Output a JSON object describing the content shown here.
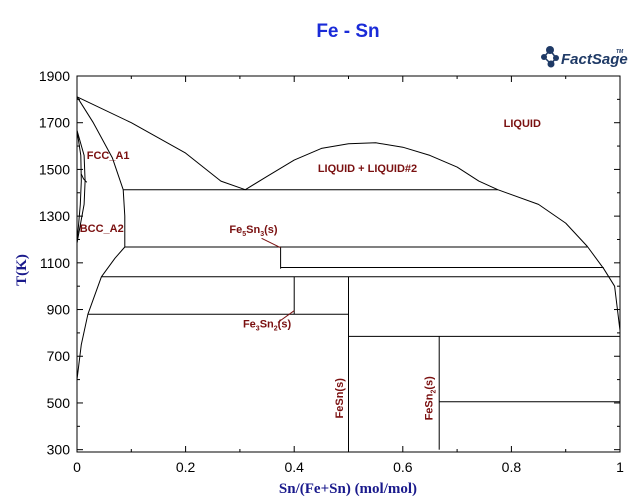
{
  "chart_data": {
    "type": "phase-diagram",
    "title": "Fe - Sn",
    "brand": "FactSage",
    "brand_mark": "TM",
    "xlabel": "Sn/(Fe+Sn) (mol/mol)",
    "ylabel": "T(K)",
    "xlim": [
      0,
      1
    ],
    "ylim": [
      290,
      1900
    ],
    "xticks": [
      0,
      0.2,
      0.4,
      0.6,
      0.8,
      1
    ],
    "xtick_labels": [
      "0",
      "0.2",
      "0.4",
      "0.6",
      "0.8",
      "1"
    ],
    "yticks": [
      300,
      500,
      700,
      900,
      1100,
      1300,
      1500,
      1700,
      1900
    ],
    "ytick_labels": [
      "300",
      "500",
      "700",
      "900",
      "1100",
      "1300",
      "1500",
      "1700",
      "1900"
    ],
    "colors": {
      "title": "#1a2bd8",
      "axis_label": "#1a1a8c",
      "region_label": "#7a1010",
      "line": "#000000",
      "logo": "#1f3a66"
    },
    "boundaries": [
      {
        "name": "liquidus-fe-side",
        "points": [
          [
            0.0,
            1811
          ],
          [
            0.1,
            1700
          ],
          [
            0.2,
            1570
          ],
          [
            0.265,
            1450
          ],
          [
            0.31,
            1413
          ]
        ]
      },
      {
        "name": "miscibility-gap",
        "points": [
          [
            0.31,
            1413
          ],
          [
            0.35,
            1470
          ],
          [
            0.4,
            1540
          ],
          [
            0.45,
            1590
          ],
          [
            0.5,
            1610
          ],
          [
            0.55,
            1614
          ],
          [
            0.6,
            1595
          ],
          [
            0.65,
            1560
          ],
          [
            0.7,
            1510
          ],
          [
            0.74,
            1450
          ],
          [
            0.775,
            1413
          ]
        ]
      },
      {
        "name": "liquidus-sn-side",
        "points": [
          [
            0.775,
            1413
          ],
          [
            0.85,
            1350
          ],
          [
            0.9,
            1270
          ],
          [
            0.94,
            1170
          ],
          [
            0.97,
            1075
          ],
          [
            0.99,
            1000
          ],
          [
            1.0,
            810
          ]
        ]
      },
      {
        "name": "bcc-liquid-boundary",
        "points": [
          [
            0.0,
            1811
          ],
          [
            0.03,
            1700
          ],
          [
            0.065,
            1550
          ],
          [
            0.085,
            1413
          ]
        ]
      },
      {
        "name": "bcc-solvus",
        "points": [
          [
            0.085,
            1413
          ],
          [
            0.088,
            1300
          ],
          [
            0.088,
            1168
          ],
          [
            0.07,
            1120
          ],
          [
            0.045,
            1040
          ],
          [
            0.02,
            880
          ],
          [
            0.008,
            750
          ],
          [
            0.0,
            600
          ]
        ]
      },
      {
        "name": "fcc-loop-outer",
        "points": [
          [
            0.0,
            1667
          ],
          [
            0.013,
            1560
          ],
          [
            0.015,
            1450
          ],
          [
            0.013,
            1350
          ],
          [
            0.0,
            1185
          ]
        ]
      },
      {
        "name": "fcc-loop-inner",
        "points": [
          [
            0.0,
            1667
          ],
          [
            0.007,
            1560
          ],
          [
            0.008,
            1450
          ],
          [
            0.006,
            1350
          ],
          [
            0.0,
            1185
          ]
        ]
      },
      {
        "name": "fcc-hook",
        "points": [
          [
            0.018,
            1445
          ],
          [
            0.012,
            1460
          ],
          [
            0.008,
            1480
          ]
        ]
      },
      {
        "name": "monotectic-line",
        "points": [
          [
            0.085,
            1413
          ],
          [
            0.775,
            1413
          ]
        ]
      },
      {
        "name": "fe5sn3-upper-line",
        "points": [
          [
            0.088,
            1168
          ],
          [
            0.94,
            1168
          ]
        ]
      },
      {
        "name": "fe5sn3-phase",
        "points": [
          [
            0.375,
            1168
          ],
          [
            0.375,
            1075
          ]
        ]
      },
      {
        "name": "fe5sn3-lower-line",
        "points": [
          [
            0.375,
            1080
          ],
          [
            0.97,
            1080
          ]
        ]
      },
      {
        "name": "fe3sn2-upper-line",
        "points": [
          [
            0.045,
            1040
          ],
          [
            1.0,
            1040
          ]
        ]
      },
      {
        "name": "fe3sn2-phase",
        "points": [
          [
            0.4,
            1040
          ],
          [
            0.4,
            880
          ]
        ]
      },
      {
        "name": "fe3sn2-lower-line",
        "points": [
          [
            0.02,
            880
          ],
          [
            0.5,
            880
          ]
        ]
      },
      {
        "name": "fesn-phase",
        "points": [
          [
            0.5,
            1040
          ],
          [
            0.5,
            300
          ]
        ]
      },
      {
        "name": "fesn-sn-line",
        "points": [
          [
            0.5,
            785
          ],
          [
            1.0,
            785
          ]
        ]
      },
      {
        "name": "fesn2-phase",
        "points": [
          [
            0.667,
            785
          ],
          [
            0.667,
            300
          ]
        ]
      },
      {
        "name": "fesn2-sn-line",
        "points": [
          [
            0.667,
            505
          ],
          [
            1.0,
            505
          ]
        ]
      }
    ],
    "labels": [
      {
        "name": "region-liquid",
        "text": "LIQUID",
        "x": 0.82,
        "y": 1682,
        "anchor": "middle"
      },
      {
        "name": "region-liquid-liquid2",
        "text": "LIQUID + LIQUID#2",
        "x": 0.535,
        "y": 1490,
        "anchor": "middle"
      },
      {
        "name": "phase-fcc-a1",
        "text": "FCC_A1",
        "x": 0.018,
        "y": 1545,
        "anchor": "start"
      },
      {
        "name": "phase-bcc-a2",
        "text": "BCC_A2",
        "x": 0.005,
        "y": 1233,
        "anchor": "start"
      }
    ],
    "compounds": [
      {
        "name": "phase-fe5sn3",
        "base": "Fe",
        "sub1": "5",
        "mid": "Sn",
        "sub2": "3",
        "suffix": "(s)",
        "x": 0.325,
        "y": 1228,
        "anchor": "middle",
        "pointer": [
          [
            0.34,
            1205
          ],
          [
            0.375,
            1165
          ]
        ]
      },
      {
        "name": "phase-fe3sn2",
        "base": "Fe",
        "sub1": "3",
        "mid": "Sn",
        "sub2": "2",
        "suffix": "(s)",
        "x": 0.35,
        "y": 824,
        "anchor": "middle",
        "pointer": [
          [
            0.37,
            845
          ],
          [
            0.4,
            895
          ]
        ]
      },
      {
        "name": "phase-fesn",
        "text": "FeSn(s)",
        "x": 0.49,
        "y": 520,
        "vertical": true
      },
      {
        "name": "phase-fesn2",
        "base": "FeSn",
        "sub1": "2",
        "suffix": "(s)",
        "x": 0.655,
        "y": 520,
        "vertical": true
      }
    ]
  }
}
